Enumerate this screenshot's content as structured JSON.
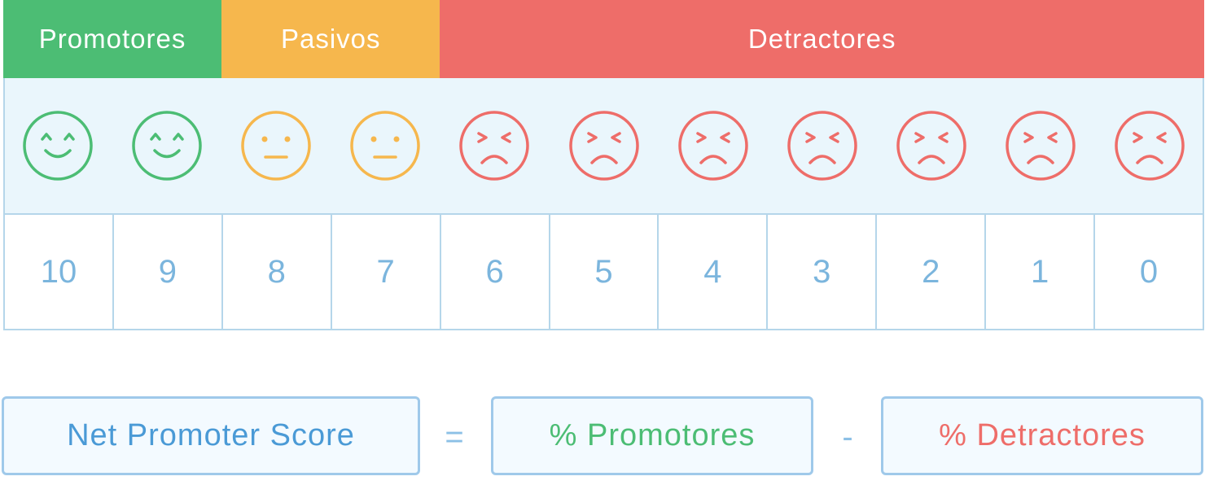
{
  "colors": {
    "promoter": "#4cbd74",
    "passive": "#f6b74d",
    "detractor": "#ee6d69",
    "score_blue": "#4a9ad6"
  },
  "categories": [
    {
      "label": "Promotores",
      "color": "#4cbd74",
      "span": 2
    },
    {
      "label": "Pasivos",
      "color": "#f6b74d",
      "span": 2
    },
    {
      "label": "Detractores",
      "color": "#ee6d69",
      "span": 7
    }
  ],
  "scores": [
    {
      "value": "10",
      "face": "happy-face-icon",
      "color": "#4cbd74"
    },
    {
      "value": "9",
      "face": "happy-face-icon",
      "color": "#4cbd74"
    },
    {
      "value": "8",
      "face": "neutral-face-icon",
      "color": "#f6b74d"
    },
    {
      "value": "7",
      "face": "neutral-face-icon",
      "color": "#f6b74d"
    },
    {
      "value": "6",
      "face": "sad-face-icon",
      "color": "#ee6d69"
    },
    {
      "value": "5",
      "face": "sad-face-icon",
      "color": "#ee6d69"
    },
    {
      "value": "4",
      "face": "sad-face-icon",
      "color": "#ee6d69"
    },
    {
      "value": "3",
      "face": "sad-face-icon",
      "color": "#ee6d69"
    },
    {
      "value": "2",
      "face": "sad-face-icon",
      "color": "#ee6d69"
    },
    {
      "value": "1",
      "face": "sad-face-icon",
      "color": "#ee6d69"
    },
    {
      "value": "0",
      "face": "sad-face-icon",
      "color": "#ee6d69"
    }
  ],
  "formula": {
    "nps_label": "Net Promoter Score",
    "equals": "=",
    "promoters_label": "% Promotores",
    "minus": "-",
    "detractors_label": "% Detractores"
  }
}
